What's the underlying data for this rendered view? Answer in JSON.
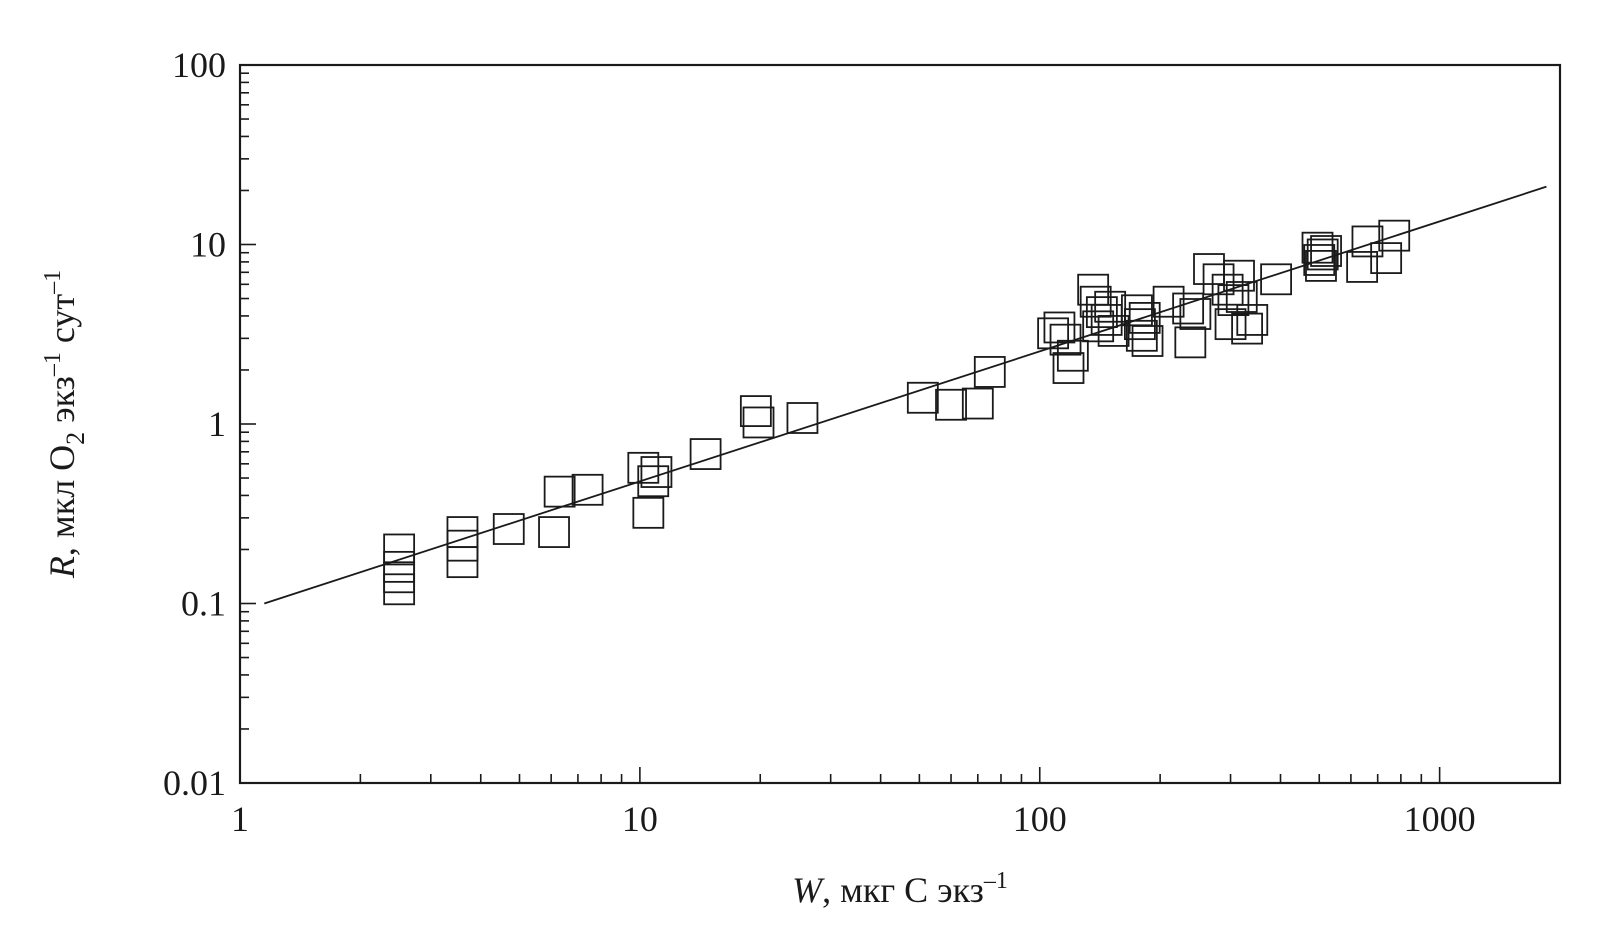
{
  "chart_data": {
    "type": "scatter",
    "x_scale": "log",
    "y_scale": "log",
    "xlim": [
      1,
      2000
    ],
    "ylim": [
      0.01,
      100
    ],
    "x_ticks": [
      {
        "value": 1,
        "label": "1"
      },
      {
        "value": 10,
        "label": "10"
      },
      {
        "value": 100,
        "label": "100"
      },
      {
        "value": 1000,
        "label": "1000"
      }
    ],
    "y_ticks": [
      {
        "value": 0.01,
        "label": "0.01"
      },
      {
        "value": 0.1,
        "label": "0.1"
      },
      {
        "value": 1,
        "label": "1"
      },
      {
        "value": 10,
        "label": "10"
      },
      {
        "value": 100,
        "label": "100"
      }
    ],
    "xlabel": {
      "var": "W",
      "rest": ", мкг С экз",
      "sup": "–1"
    },
    "ylabel": {
      "var": "R",
      "p1": ", мкл O",
      "sub": "2",
      "p2": " экз",
      "sup1": "–1",
      "p3": " сут",
      "sup2": "–1"
    },
    "grid": false,
    "marker": "open-square",
    "fit_line": {
      "x": [
        1.15,
        1850
      ],
      "y": [
        0.1,
        21
      ]
    },
    "points": [
      {
        "x": 2.5,
        "y": 0.2
      },
      {
        "x": 2.5,
        "y": 0.16
      },
      {
        "x": 2.5,
        "y": 0.14
      },
      {
        "x": 2.5,
        "y": 0.12
      },
      {
        "x": 3.6,
        "y": 0.25
      },
      {
        "x": 3.6,
        "y": 0.21
      },
      {
        "x": 3.6,
        "y": 0.17
      },
      {
        "x": 4.7,
        "y": 0.26
      },
      {
        "x": 6.1,
        "y": 0.25
      },
      {
        "x": 6.3,
        "y": 0.42
      },
      {
        "x": 7.4,
        "y": 0.43
      },
      {
        "x": 10.2,
        "y": 0.57
      },
      {
        "x": 10.5,
        "y": 0.32
      },
      {
        "x": 10.8,
        "y": 0.48
      },
      {
        "x": 11.0,
        "y": 0.54
      },
      {
        "x": 14.6,
        "y": 0.68
      },
      {
        "x": 19.5,
        "y": 1.18
      },
      {
        "x": 19.8,
        "y": 1.02
      },
      {
        "x": 25.5,
        "y": 1.08
      },
      {
        "x": 51,
        "y": 1.4
      },
      {
        "x": 60,
        "y": 1.28
      },
      {
        "x": 70,
        "y": 1.3
      },
      {
        "x": 75,
        "y": 1.95
      },
      {
        "x": 108,
        "y": 3.2
      },
      {
        "x": 112,
        "y": 3.45
      },
      {
        "x": 116,
        "y": 2.95
      },
      {
        "x": 118,
        "y": 2.05
      },
      {
        "x": 121,
        "y": 2.4
      },
      {
        "x": 136,
        "y": 5.6
      },
      {
        "x": 138,
        "y": 4.8
      },
      {
        "x": 140,
        "y": 3.5
      },
      {
        "x": 143,
        "y": 4.2
      },
      {
        "x": 147,
        "y": 3.8
      },
      {
        "x": 150,
        "y": 4.5
      },
      {
        "x": 153,
        "y": 3.3
      },
      {
        "x": 175,
        "y": 4.3
      },
      {
        "x": 178,
        "y": 3.6
      },
      {
        "x": 180,
        "y": 3.1
      },
      {
        "x": 183,
        "y": 3.9
      },
      {
        "x": 186,
        "y": 2.9
      },
      {
        "x": 210,
        "y": 4.8
      },
      {
        "x": 235,
        "y": 4.4
      },
      {
        "x": 238,
        "y": 2.85
      },
      {
        "x": 245,
        "y": 4.1
      },
      {
        "x": 265,
        "y": 7.3
      },
      {
        "x": 280,
        "y": 6.4
      },
      {
        "x": 295,
        "y": 5.6
      },
      {
        "x": 300,
        "y": 3.6
      },
      {
        "x": 305,
        "y": 4.9
      },
      {
        "x": 315,
        "y": 6.7
      },
      {
        "x": 320,
        "y": 5.1
      },
      {
        "x": 330,
        "y": 3.4
      },
      {
        "x": 340,
        "y": 3.8
      },
      {
        "x": 390,
        "y": 6.4
      },
      {
        "x": 495,
        "y": 9.6
      },
      {
        "x": 500,
        "y": 8.2
      },
      {
        "x": 505,
        "y": 7.6
      },
      {
        "x": 510,
        "y": 8.8
      },
      {
        "x": 520,
        "y": 9.2
      },
      {
        "x": 640,
        "y": 7.5
      },
      {
        "x": 660,
        "y": 10.4
      },
      {
        "x": 735,
        "y": 8.4
      },
      {
        "x": 770,
        "y": 11.2
      }
    ]
  }
}
